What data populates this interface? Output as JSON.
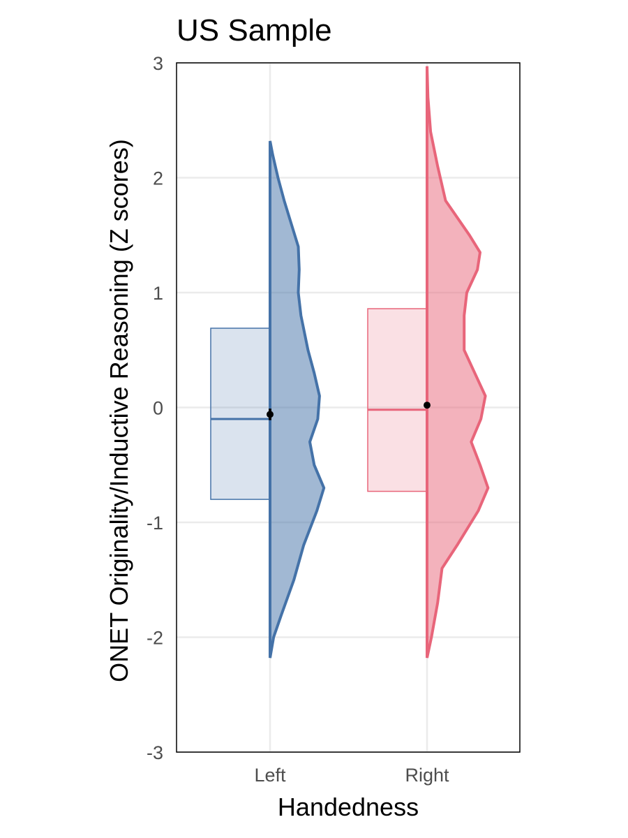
{
  "chart_data": {
    "type": "raincloud",
    "title": "US Sample",
    "xlabel": "Handedness",
    "ylabel": "ONET Originality/Inductive Reasoning (Z scores)",
    "categories": [
      "Left",
      "Right"
    ],
    "ylim": [
      -3,
      3
    ],
    "yticks": [
      -3,
      -2,
      -1,
      0,
      1,
      2,
      3
    ],
    "ytick_labels": [
      "-3",
      "-2",
      "-1",
      "0",
      "1",
      "2",
      "3"
    ],
    "grid": true,
    "series": [
      {
        "color": "#4472a8",
        "box": {
          "q1": -0.8,
          "median": -0.1,
          "q3": 0.69
        },
        "mean": -0.06,
        "mean_error": 0.05,
        "density_range": [
          -2.18,
          2.32
        ],
        "density": [
          [
            -2.18,
            0.0
          ],
          [
            -2.0,
            0.04
          ],
          [
            -1.8,
            0.13
          ],
          [
            -1.5,
            0.27
          ],
          [
            -1.2,
            0.38
          ],
          [
            -0.9,
            0.53
          ],
          [
            -0.7,
            0.61
          ],
          [
            -0.5,
            0.5
          ],
          [
            -0.3,
            0.45
          ],
          [
            -0.1,
            0.54
          ],
          [
            0.1,
            0.56
          ],
          [
            0.3,
            0.5
          ],
          [
            0.5,
            0.43
          ],
          [
            0.8,
            0.35
          ],
          [
            1.0,
            0.32
          ],
          [
            1.2,
            0.33
          ],
          [
            1.4,
            0.32
          ],
          [
            1.6,
            0.24
          ],
          [
            1.8,
            0.16
          ],
          [
            2.0,
            0.09
          ],
          [
            2.2,
            0.03
          ],
          [
            2.32,
            0.0
          ]
        ]
      },
      {
        "color": "#e8657a",
        "box": {
          "q1": -0.73,
          "median": -0.02,
          "q3": 0.86
        },
        "mean": 0.02,
        "mean_error": 0.01,
        "density_range": [
          -2.18,
          2.97
        ],
        "density": [
          [
            -2.18,
            0.0
          ],
          [
            -2.0,
            0.05
          ],
          [
            -1.7,
            0.12
          ],
          [
            -1.4,
            0.17
          ],
          [
            -1.2,
            0.34
          ],
          [
            -0.9,
            0.58
          ],
          [
            -0.7,
            0.69
          ],
          [
            -0.5,
            0.6
          ],
          [
            -0.3,
            0.5
          ],
          [
            -0.1,
            0.61
          ],
          [
            0.1,
            0.66
          ],
          [
            0.3,
            0.54
          ],
          [
            0.5,
            0.42
          ],
          [
            0.8,
            0.42
          ],
          [
            1.0,
            0.45
          ],
          [
            1.2,
            0.57
          ],
          [
            1.35,
            0.6
          ],
          [
            1.5,
            0.48
          ],
          [
            1.8,
            0.21
          ],
          [
            2.1,
            0.12
          ],
          [
            2.4,
            0.04
          ],
          [
            2.7,
            0.01
          ],
          [
            2.97,
            0.0
          ]
        ]
      }
    ]
  }
}
